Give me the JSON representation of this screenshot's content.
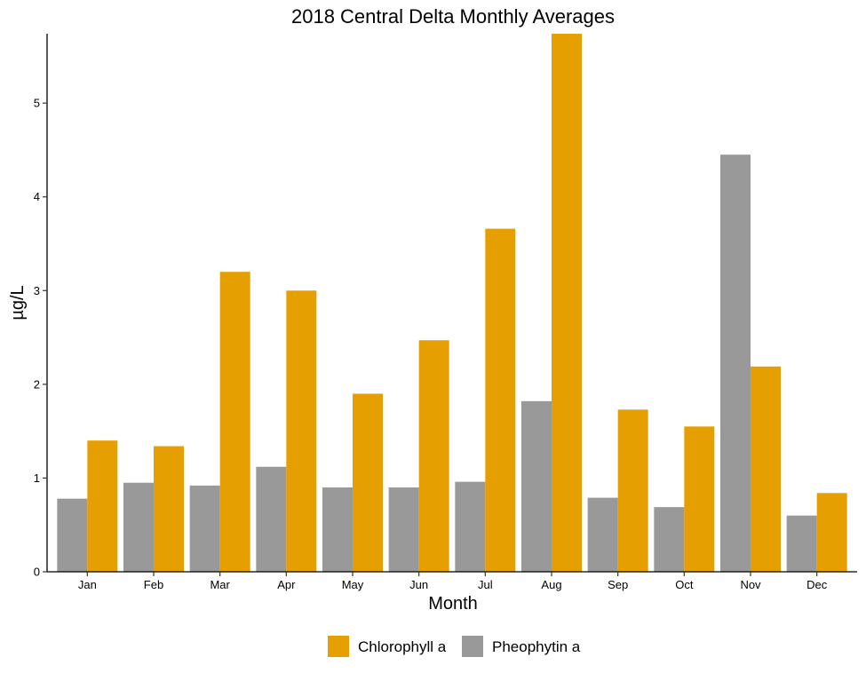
{
  "chart_data": {
    "type": "bar",
    "title": "2018 Central Delta Monthly Averages",
    "xlabel": "Month",
    "ylabel": "µg/L",
    "categories": [
      "Jan",
      "Feb",
      "Mar",
      "Apr",
      "May",
      "Jun",
      "Jul",
      "Aug",
      "Sep",
      "Oct",
      "Nov",
      "Dec"
    ],
    "series": [
      {
        "name": "Pheophytin a",
        "color": "#999999",
        "values": [
          0.78,
          0.95,
          0.92,
          1.12,
          0.9,
          0.9,
          0.96,
          1.82,
          0.79,
          0.69,
          4.45,
          0.6
        ]
      },
      {
        "name": "Chlorophyll a",
        "color": "#E69F00",
        "values": [
          1.4,
          1.34,
          3.2,
          3.0,
          1.9,
          2.47,
          3.66,
          5.74,
          1.73,
          1.55,
          2.19,
          0.84
        ]
      }
    ],
    "ylim": [
      0,
      5.74
    ],
    "yticks": [
      0,
      1,
      2,
      3,
      4,
      5
    ],
    "legend": {
      "position": "bottom",
      "order": [
        "Chlorophyll a",
        "Pheophytin a"
      ]
    },
    "grid": false
  }
}
